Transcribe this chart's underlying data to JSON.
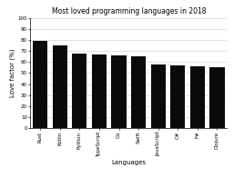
{
  "title": "Most loved programming languages in 2018",
  "xlabel": "Languages",
  "ylabel": "Love factor (%)",
  "categories": [
    "Rust",
    "Kotlin",
    "Python",
    "TypeScript",
    "Go",
    "Swift",
    "JavaScript",
    "C#",
    "F#",
    "Clojure"
  ],
  "bar_values": [
    78.9,
    75.1,
    67.8,
    67.0,
    65.6,
    65.1,
    58.0,
    57.0,
    56.0,
    55.0
  ],
  "bar_color": "#0a0a0a",
  "ylim": [
    0,
    100
  ],
  "yticks": [
    0,
    10,
    20,
    30,
    40,
    50,
    60,
    70,
    80,
    90,
    100
  ],
  "title_fontsize": 5.5,
  "axis_label_fontsize": 5,
  "tick_fontsize": 4,
  "background_color": "#ffffff",
  "grid_color": "#cccccc"
}
